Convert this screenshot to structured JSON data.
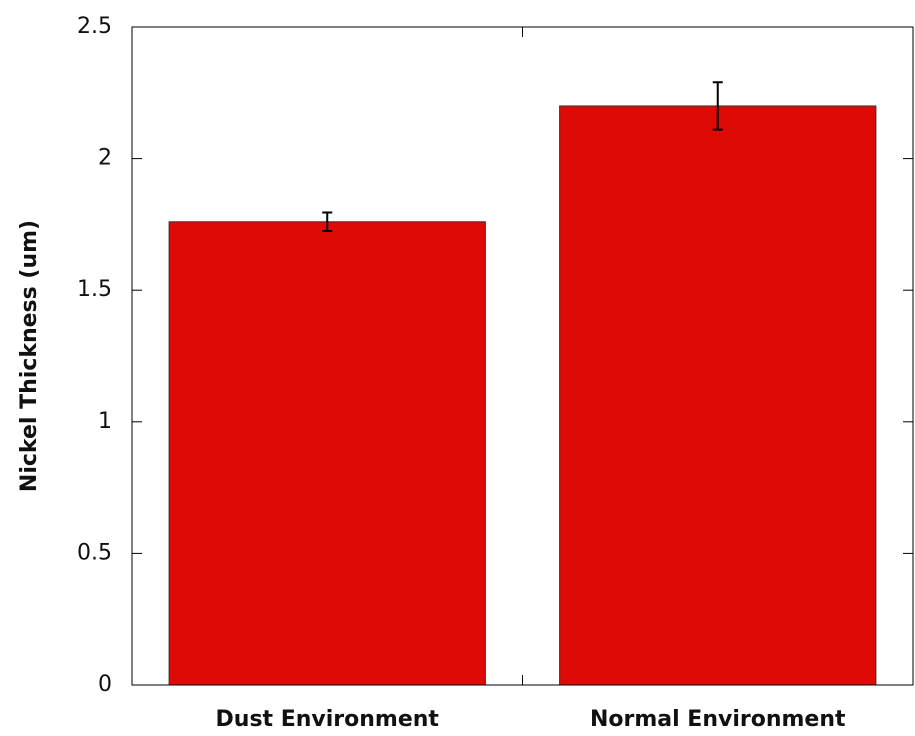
{
  "chart_data": {
    "type": "bar",
    "y_label": "Nickel Thickness (um)",
    "categories": [
      "Dust Environment",
      "Normal Environment"
    ],
    "values": [
      1.76,
      2.2
    ],
    "errors": [
      0.035,
      0.09
    ],
    "color": "#dd0a06",
    "ylim": [
      0,
      2.5
    ],
    "yticks": [
      0,
      0.5,
      1,
      1.5,
      2,
      2.5
    ]
  }
}
